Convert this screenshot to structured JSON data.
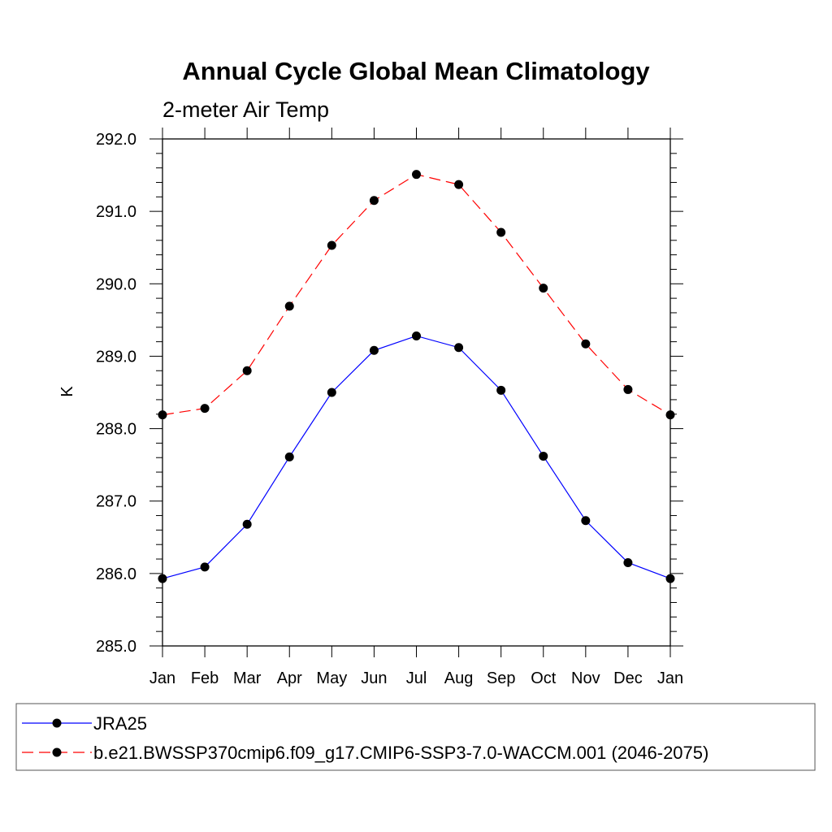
{
  "chart_data": {
    "type": "line",
    "title": "Annual Cycle Global Mean Climatology",
    "subtitle": "2-meter Air Temp",
    "xlabel": "",
    "ylabel": "K",
    "categories": [
      "Jan",
      "Feb",
      "Mar",
      "Apr",
      "May",
      "Jun",
      "Jul",
      "Aug",
      "Sep",
      "Oct",
      "Nov",
      "Dec",
      "Jan"
    ],
    "ylim": [
      285.0,
      292.0
    ],
    "yticks": [
      "285.0",
      "286.0",
      "287.0",
      "288.0",
      "289.0",
      "290.0",
      "291.0",
      "292.0"
    ],
    "grid": false,
    "legend_position": "bottom",
    "series": [
      {
        "name": "JRA25",
        "color": "#0000ff",
        "line_style": "solid",
        "marker": "circle",
        "values": [
          285.93,
          286.09,
          286.68,
          287.61,
          288.5,
          289.08,
          289.28,
          289.12,
          288.53,
          287.62,
          286.73,
          286.15,
          285.93
        ]
      },
      {
        "name": "b.e21.BWSSP370cmip6.f09_g17.CMIP6-SSP3-7.0-WACCM.001 (2046-2075)",
        "color": "#ff0000",
        "line_style": "dashed",
        "marker": "circle",
        "values": [
          288.19,
          288.28,
          288.8,
          289.69,
          290.53,
          291.15,
          291.51,
          291.37,
          290.71,
          289.94,
          289.17,
          288.54,
          288.19
        ]
      }
    ]
  }
}
